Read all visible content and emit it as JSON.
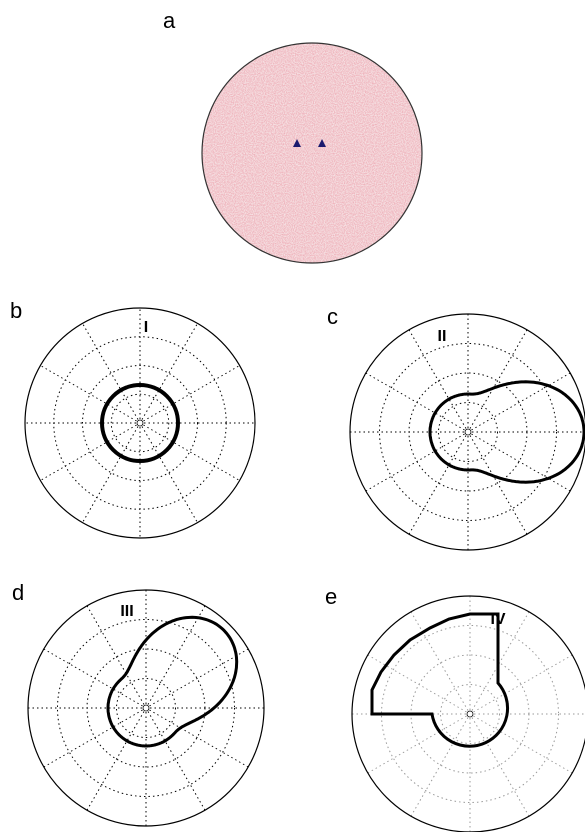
{
  "panels": [
    {
      "label": "a"
    },
    {
      "label": "b",
      "numeral": "I"
    },
    {
      "label": "c",
      "numeral": "II"
    },
    {
      "label": "d",
      "numeral": "III"
    },
    {
      "label": "e",
      "numeral": "IV"
    }
  ]
}
